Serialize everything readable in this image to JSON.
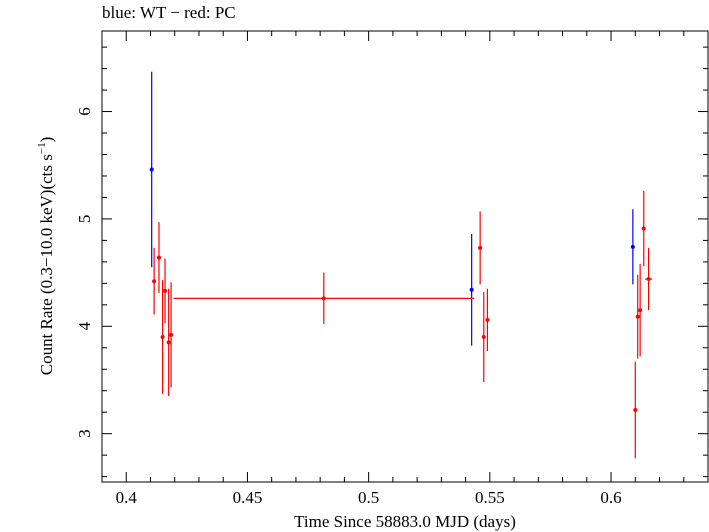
{
  "chart_data": {
    "type": "scatter",
    "title": "blue: WT − red: PC",
    "xlabel": "Time Since 58883.0 MJD (days)",
    "ylabel_main": "Count Rate (0.3−10.0 keV)(cts s",
    "ylabel_sup": "−1",
    "ylabel_close": ")",
    "xlim": [
      0.39,
      0.64
    ],
    "ylim": [
      2.55,
      6.75
    ],
    "xticks": [
      0.4,
      0.45,
      0.5,
      0.55,
      0.6
    ],
    "xtick_labels": [
      "0.4",
      "0.45",
      "0.5",
      "0.55",
      "0.6"
    ],
    "yticks": [
      3,
      4,
      5,
      6
    ],
    "ytick_labels": [
      "3",
      "4",
      "5",
      "6"
    ],
    "grid": false,
    "series": [
      {
        "color": "#0000ff",
        "points": [
          {
            "x": 0.4105,
            "xerr": 0.0005,
            "y": 5.46,
            "yerr": 0.91
          },
          {
            "x": 0.5425,
            "xerr": 0.0005,
            "y": 4.34,
            "yerr": 0.52
          },
          {
            "x": 0.609,
            "xerr": 0.0005,
            "y": 4.74,
            "yerr": 0.35
          }
        ]
      },
      {
        "color": "#ff0000",
        "points": [
          {
            "x": 0.4115,
            "xerr": 0.0008,
            "y": 4.42,
            "yerr": 0.31
          },
          {
            "x": 0.4135,
            "xerr": 0.0008,
            "y": 4.64,
            "yerr": 0.33
          },
          {
            "x": 0.415,
            "xerr": 0.0006,
            "y": 3.9,
            "yerr": 0.53
          },
          {
            "x": 0.416,
            "xerr": 0.0006,
            "y": 4.33,
            "yerr": 0.3
          },
          {
            "x": 0.4175,
            "xerr": 0.0006,
            "y": 3.85,
            "yerr": 0.5
          },
          {
            "x": 0.4185,
            "xerr": 0.0006,
            "y": 3.92,
            "yerr": 0.49
          },
          {
            "x": 0.4815,
            "xerr": 0.062,
            "y": 4.26,
            "yerr": 0.24
          },
          {
            "x": 0.546,
            "xerr": 0.0008,
            "y": 4.73,
            "yerr": 0.34
          },
          {
            "x": 0.5475,
            "xerr": 0.0006,
            "y": 3.9,
            "yerr": 0.42
          },
          {
            "x": 0.549,
            "xerr": 0.0008,
            "y": 4.06,
            "yerr": 0.29
          },
          {
            "x": 0.61,
            "xerr": 0.0006,
            "y": 3.22,
            "yerr": 0.45
          },
          {
            "x": 0.611,
            "xerr": 0.0006,
            "y": 4.09,
            "yerr": 0.39
          },
          {
            "x": 0.612,
            "xerr": 0.0006,
            "y": 4.15,
            "yerr": 0.43
          },
          {
            "x": 0.6135,
            "xerr": 0.0006,
            "y": 4.91,
            "yerr": 0.35
          },
          {
            "x": 0.6155,
            "xerr": 0.0015,
            "y": 4.44,
            "yerr": 0.29
          }
        ]
      }
    ]
  }
}
